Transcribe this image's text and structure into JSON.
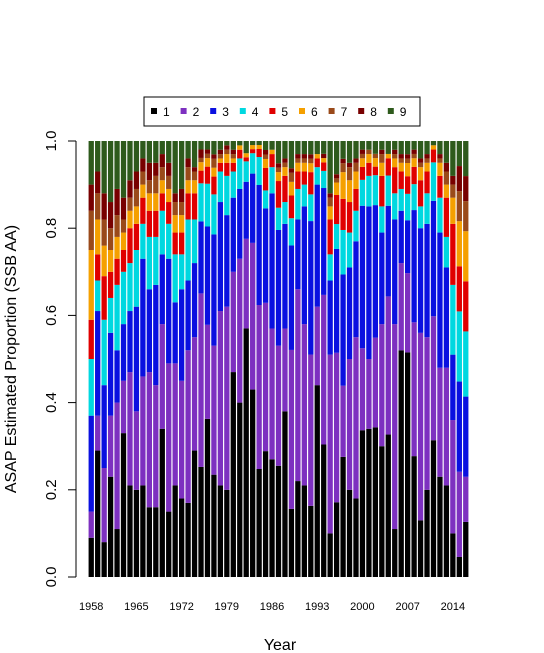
{
  "chart_data": {
    "type": "bar",
    "stacked": true,
    "title": "",
    "xlabel": "Year",
    "ylabel": "ASAP Estimated Proportion (SSB AA)",
    "ylim": [
      0,
      1
    ],
    "y_ticks": [
      "0.0",
      "0.2",
      "0.4",
      "0.6",
      "0.8",
      "1.0"
    ],
    "x_tick_labels": [
      "1958",
      "1965",
      "1972",
      "1979",
      "1986",
      "1993",
      "2000",
      "2007",
      "2014"
    ],
    "legend_position": "top",
    "categories": [
      1958,
      1959,
      1960,
      1961,
      1962,
      1963,
      1964,
      1965,
      1966,
      1967,
      1968,
      1969,
      1970,
      1971,
      1972,
      1973,
      1974,
      1975,
      1976,
      1977,
      1978,
      1979,
      1980,
      1981,
      1982,
      1983,
      1984,
      1985,
      1986,
      1987,
      1988,
      1989,
      1990,
      1991,
      1992,
      1993,
      1994,
      1995,
      1996,
      1997,
      1998,
      1999,
      2000,
      2001,
      2002,
      2003,
      2004,
      2005,
      2006,
      2007,
      2008,
      2009,
      2010,
      2011,
      2012,
      2013,
      2014,
      2015,
      2016
    ],
    "series": [
      {
        "name": "1",
        "color": "#000000",
        "values": [
          0.09,
          0.29,
          0.08,
          0.23,
          0.11,
          0.33,
          0.21,
          0.2,
          0.21,
          0.16,
          0.16,
          0.34,
          0.15,
          0.21,
          0.18,
          0.17,
          0.29,
          0.26,
          0.37,
          0.23,
          0.21,
          0.2,
          0.47,
          0.4,
          0.61,
          0.46,
          0.27,
          0.28,
          0.27,
          0.25,
          0.38,
          0.15,
          0.22,
          0.21,
          0.16,
          0.44,
          0.31,
          0.1,
          0.18,
          0.27,
          0.2,
          0.18,
          0.34,
          0.34,
          0.35,
          0.3,
          0.33,
          0.11,
          0.52,
          0.51,
          0.28,
          0.13,
          0.2,
          0.32,
          0.23,
          0.21,
          0.1,
          0.04,
          0.11
        ]
      },
      {
        "name": "2",
        "color": "#7d30c0",
        "values": [
          0.06,
          0.08,
          0.17,
          0.14,
          0.29,
          0.12,
          0.26,
          0.18,
          0.25,
          0.31,
          0.28,
          0.24,
          0.34,
          0.28,
          0.27,
          0.35,
          0.26,
          0.41,
          0.22,
          0.29,
          0.4,
          0.42,
          0.23,
          0.33,
          0.22,
          0.36,
          0.41,
          0.33,
          0.3,
          0.27,
          0.19,
          0.35,
          0.44,
          0.37,
          0.34,
          0.18,
          0.35,
          0.41,
          0.36,
          0.16,
          0.3,
          0.37,
          0.19,
          0.16,
          0.21,
          0.28,
          0.32,
          0.47,
          0.2,
          0.18,
          0.31,
          0.43,
          0.35,
          0.29,
          0.25,
          0.27,
          0.26,
          0.17,
          0.09
        ]
      },
      {
        "name": "3",
        "color": "#0a10e0",
        "values": [
          0.22,
          0.24,
          0.19,
          0.19,
          0.12,
          0.13,
          0.14,
          0.24,
          0.27,
          0.19,
          0.23,
          0.16,
          0.24,
          0.14,
          0.21,
          0.16,
          0.17,
          0.17,
          0.23,
          0.25,
          0.25,
          0.21,
          0.17,
          0.16,
          0.14,
          0.17,
          0.3,
          0.21,
          0.31,
          0.26,
          0.24,
          0.23,
          0.16,
          0.27,
          0.3,
          0.28,
          0.25,
          0.17,
          0.25,
          0.25,
          0.21,
          0.22,
          0.33,
          0.35,
          0.31,
          0.21,
          0.21,
          0.24,
          0.12,
          0.12,
          0.26,
          0.24,
          0.26,
          0.27,
          0.31,
          0.23,
          0.15,
          0.18,
          0.16
        ]
      },
      {
        "name": "4",
        "color": "#00d8e0",
        "values": [
          0.13,
          0.07,
          0.15,
          0.08,
          0.15,
          0.12,
          0.11,
          0.13,
          0.08,
          0.12,
          0.11,
          0.1,
          0.08,
          0.11,
          0.08,
          0.14,
          0.1,
          0.09,
          0.1,
          0.09,
          0.07,
          0.09,
          0.06,
          0.07,
          0.05,
          0.05,
          0.07,
          0.04,
          0.06,
          0.05,
          0.05,
          0.06,
          0.07,
          0.05,
          0.06,
          0.04,
          0.04,
          0.06,
          0.06,
          0.1,
          0.08,
          0.07,
          0.06,
          0.07,
          0.07,
          0.06,
          0.07,
          0.06,
          0.05,
          0.06,
          0.06,
          0.05,
          0.07,
          0.09,
          0.08,
          0.07,
          0.16,
          0.14,
          0.13
        ]
      },
      {
        "name": "5",
        "color": "#e00000",
        "values": [
          0.09,
          0.06,
          0.1,
          0.06,
          0.06,
          0.05,
          0.08,
          0.06,
          0.06,
          0.06,
          0.06,
          0.04,
          0.05,
          0.05,
          0.05,
          0.06,
          0.06,
          0.03,
          0.04,
          0.04,
          0.02,
          0.03,
          0.02,
          0.02,
          0.01,
          0.01,
          0.02,
          0.05,
          0.03,
          0.06,
          0.06,
          0.05,
          0.04,
          0.03,
          0.05,
          0.02,
          0.02,
          0.08,
          0.07,
          0.07,
          0.07,
          0.05,
          0.03,
          0.03,
          0.02,
          0.07,
          0.04,
          0.06,
          0.04,
          0.04,
          0.04,
          0.06,
          0.05,
          0.03,
          0.05,
          0.09,
          0.14,
          0.09,
          0.1
        ]
      },
      {
        "name": "6",
        "color": "#f5a000",
        "values": [
          0.16,
          0.08,
          0.07,
          0.05,
          0.05,
          0.04,
          0.04,
          0.04,
          0.03,
          0.04,
          0.04,
          0.03,
          0.03,
          0.04,
          0.04,
          0.03,
          0.03,
          0.02,
          0.02,
          0.02,
          0.01,
          0.02,
          0.01,
          0.01,
          0.01,
          0.01,
          0.01,
          0.02,
          0.01,
          0.02,
          0.02,
          0.03,
          0.02,
          0.02,
          0.02,
          0.01,
          0.01,
          0.03,
          0.03,
          0.06,
          0.05,
          0.04,
          0.02,
          0.02,
          0.02,
          0.03,
          0.01,
          0.02,
          0.02,
          0.03,
          0.02,
          0.03,
          0.02,
          0.01,
          0.03,
          0.03,
          0.06,
          0.09,
          0.1
        ]
      },
      {
        "name": "7",
        "color": "#9a4a1a",
        "values": [
          0.09,
          0.06,
          0.06,
          0.05,
          0.05,
          0.03,
          0.03,
          0.04,
          0.03,
          0.03,
          0.04,
          0.03,
          0.03,
          0.03,
          0.03,
          0.03,
          0.02,
          0.01,
          0.01,
          0.02,
          0.01,
          0.01,
          0.01,
          0.0,
          0.0,
          0.0,
          0.0,
          0.01,
          0.0,
          0.01,
          0.01,
          0.02,
          0.01,
          0.01,
          0.01,
          0.0,
          0.0,
          0.02,
          0.01,
          0.02,
          0.03,
          0.02,
          0.01,
          0.01,
          0.01,
          0.02,
          0.0,
          0.01,
          0.01,
          0.01,
          0.01,
          0.01,
          0.01,
          0.0,
          0.01,
          0.03,
          0.03,
          0.06,
          0.06
        ]
      },
      {
        "name": "8",
        "color": "#780000",
        "values": [
          0.06,
          0.05,
          0.06,
          0.06,
          0.06,
          0.05,
          0.04,
          0.04,
          0.03,
          0.04,
          0.03,
          0.03,
          0.03,
          0.02,
          0.03,
          0.02,
          0.01,
          0.02,
          0.01,
          0.01,
          0.01,
          0.01,
          0.01,
          0.0,
          0.0,
          0.0,
          0.0,
          0.01,
          0.0,
          0.01,
          0.01,
          0.01,
          0.01,
          0.01,
          0.01,
          0.0,
          0.01,
          0.01,
          0.01,
          0.01,
          0.01,
          0.01,
          0.01,
          0.0,
          0.0,
          0.01,
          0.0,
          0.01,
          0.01,
          0.01,
          0.01,
          0.01,
          0.01,
          0.0,
          0.01,
          0.02,
          0.02,
          0.05,
          0.05
        ]
      },
      {
        "name": "9",
        "color": "#2e5a1c",
        "values": [
          0.1,
          0.07,
          0.12,
          0.14,
          0.11,
          0.13,
          0.09,
          0.07,
          0.04,
          0.05,
          0.05,
          0.03,
          0.05,
          0.12,
          0.11,
          0.04,
          0.06,
          0.02,
          0.02,
          0.03,
          0.02,
          0.01,
          0.02,
          0.01,
          0.03,
          0.01,
          0.01,
          0.02,
          0.02,
          0.05,
          0.04,
          0.06,
          0.03,
          0.03,
          0.03,
          0.03,
          0.03,
          0.12,
          0.08,
          0.04,
          0.05,
          0.04,
          0.02,
          0.02,
          0.03,
          0.02,
          0.03,
          0.02,
          0.03,
          0.03,
          0.02,
          0.04,
          0.03,
          0.01,
          0.03,
          0.05,
          0.08,
          0.05,
          0.07
        ]
      }
    ]
  }
}
